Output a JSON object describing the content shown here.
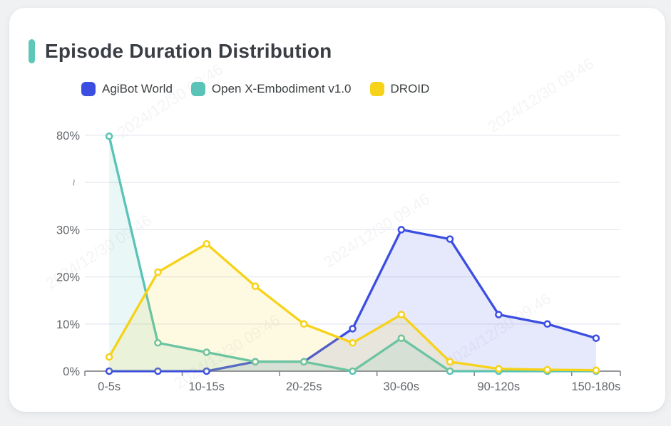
{
  "watermark": {
    "text": "2024/12/30 09:46"
  },
  "chart_data": {
    "type": "line",
    "title": "Episode Duration Distribution",
    "xlabel": "",
    "ylabel": "",
    "categories": [
      "0-5s",
      "",
      "10-15s",
      "",
      "20-25s",
      "",
      "30-60s",
      "",
      "90-120s",
      "",
      "150-180s"
    ],
    "series": [
      {
        "name": "AgiBot World",
        "color": "#3b4ee1",
        "values": [
          0,
          0,
          0,
          2,
          2,
          9,
          30,
          28,
          12,
          10,
          7
        ]
      },
      {
        "name": "Open X-Embodiment v1.0",
        "color": "#58c3b6",
        "values": [
          79.5,
          6,
          4,
          2,
          2,
          0,
          7,
          0,
          0,
          0,
          0
        ]
      },
      {
        "name": "DROID",
        "color": "#f6d218",
        "values": [
          3,
          21,
          27,
          18,
          10,
          6,
          12,
          2,
          0.5,
          0.3,
          0.2
        ]
      }
    ],
    "y_axis": {
      "tick_labels": [
        "0%",
        "10%",
        "20%",
        "30%",
        "~",
        "80%"
      ],
      "tick_values": [
        0,
        10,
        20,
        30,
        null,
        80
      ],
      "has_break": true,
      "break_between": [
        30,
        80
      ],
      "unit": "%"
    },
    "grid": true,
    "legend_position": "top-left",
    "area_fill": true,
    "marker": "hollow-circle"
  }
}
